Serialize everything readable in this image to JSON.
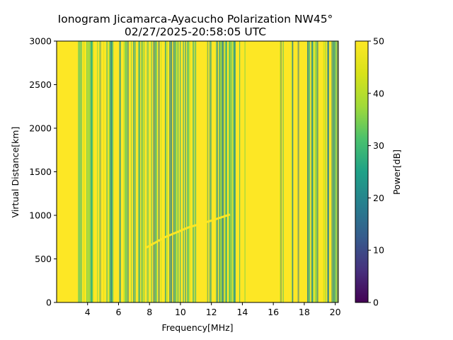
{
  "chart_data": {
    "type": "heatmap",
    "title": "Ionogram Jicamarca-Ayacucho Polarization NW45°",
    "subtitle": "02/27/2025-20:58:05 UTC",
    "xlabel": "Frequency[MHz]",
    "ylabel": "Virtual Distance[km]",
    "xlim": [
      2.0,
      20.2
    ],
    "ylim": [
      0,
      3000
    ],
    "xticks": [
      4,
      6,
      8,
      10,
      12,
      14,
      16,
      18,
      20
    ],
    "yticks": [
      0,
      500,
      1000,
      1500,
      2000,
      2500,
      3000
    ],
    "colorbar": {
      "label": "Power[dB]",
      "range": [
        0,
        50
      ],
      "ticks": [
        0,
        10,
        20,
        30,
        40,
        50
      ],
      "colormap": "viridis"
    },
    "trace": {
      "description_points": [
        [
          7.8,
          630
        ],
        [
          9.0,
          750
        ],
        [
          10.5,
          860
        ],
        [
          12.0,
          940
        ],
        [
          13.2,
          1010
        ]
      ]
    },
    "clear_bands_mhz": [
      [
        2.0,
        3.0
      ],
      [
        14.0,
        16.4
      ],
      [
        17.6,
        18.2
      ]
    ]
  },
  "colors": {
    "viridis_low": "#440154",
    "viridis_mid": "#21918c",
    "viridis_high": "#fde725"
  }
}
